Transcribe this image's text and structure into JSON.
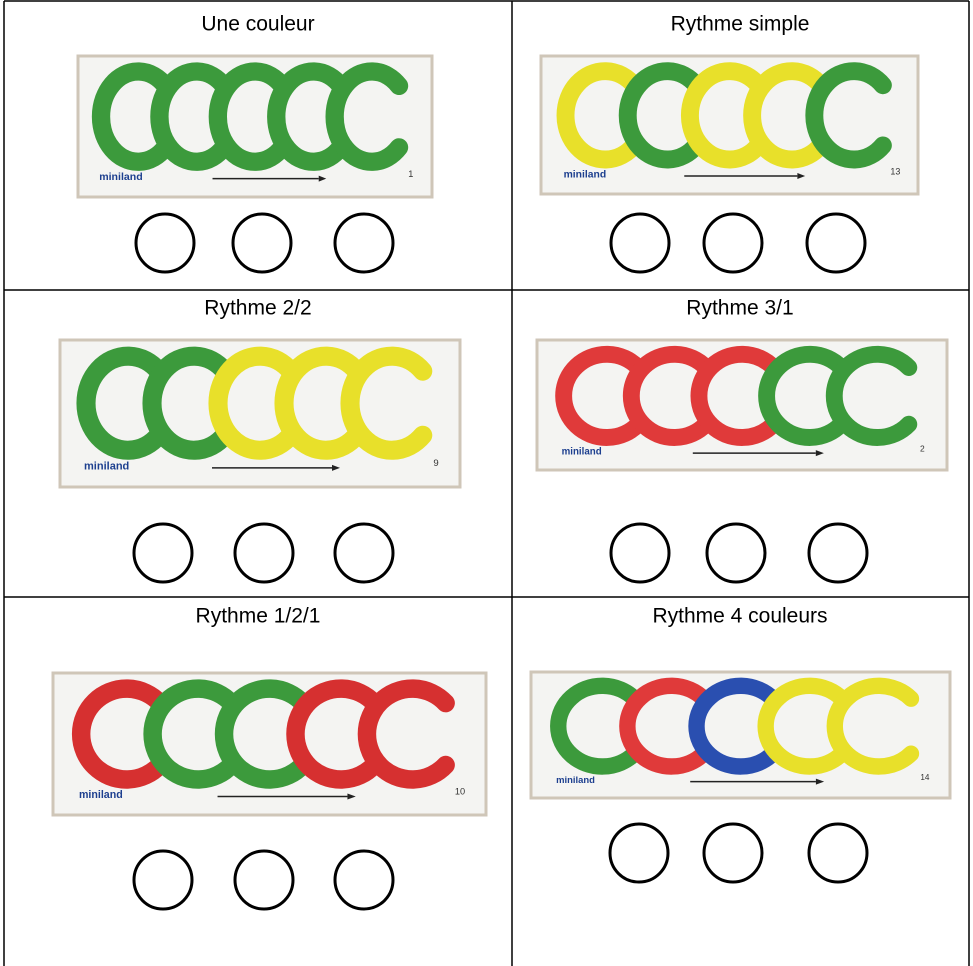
{
  "cells": [
    {
      "title": "Une couleur",
      "card": {
        "brand": "miniland",
        "number": "1",
        "links": [
          "#3c9a3c",
          "#3c9a3c",
          "#3c9a3c",
          "#3c9a3c",
          "#3c9a3c"
        ]
      }
    },
    {
      "title": "Rythme simple",
      "card": {
        "brand": "miniland",
        "number": "13",
        "links": [
          "#e8e02a",
          "#3c9a3c",
          "#e8e02a",
          "#e8e02a",
          "#3c9a3c"
        ]
      }
    },
    {
      "title": "Rythme 2/2",
      "card": {
        "brand": "miniland",
        "number": "9",
        "links": [
          "#3c9a3c",
          "#3c9a3c",
          "#e8e02a",
          "#e8e02a",
          "#e8e02a"
        ]
      }
    },
    {
      "title": "Rythme 3/1",
      "card": {
        "brand": "miniland",
        "number": "2",
        "links": [
          "#e03a3a",
          "#e03a3a",
          "#e03a3a",
          "#3c9a3c",
          "#3c9a3c"
        ]
      }
    },
    {
      "title": "Rythme 1/2/1",
      "card": {
        "brand": "miniland",
        "number": "10",
        "links": [
          "#d63030",
          "#3c9a3c",
          "#3c9a3c",
          "#d63030",
          "#d63030"
        ]
      }
    },
    {
      "title": "Rythme 4 couleurs",
      "card": {
        "brand": "miniland",
        "number": "14",
        "links": [
          "#3c9a3c",
          "#e03a3a",
          "#2a4fb0",
          "#e8e02a",
          "#e8e02a"
        ]
      }
    }
  ]
}
